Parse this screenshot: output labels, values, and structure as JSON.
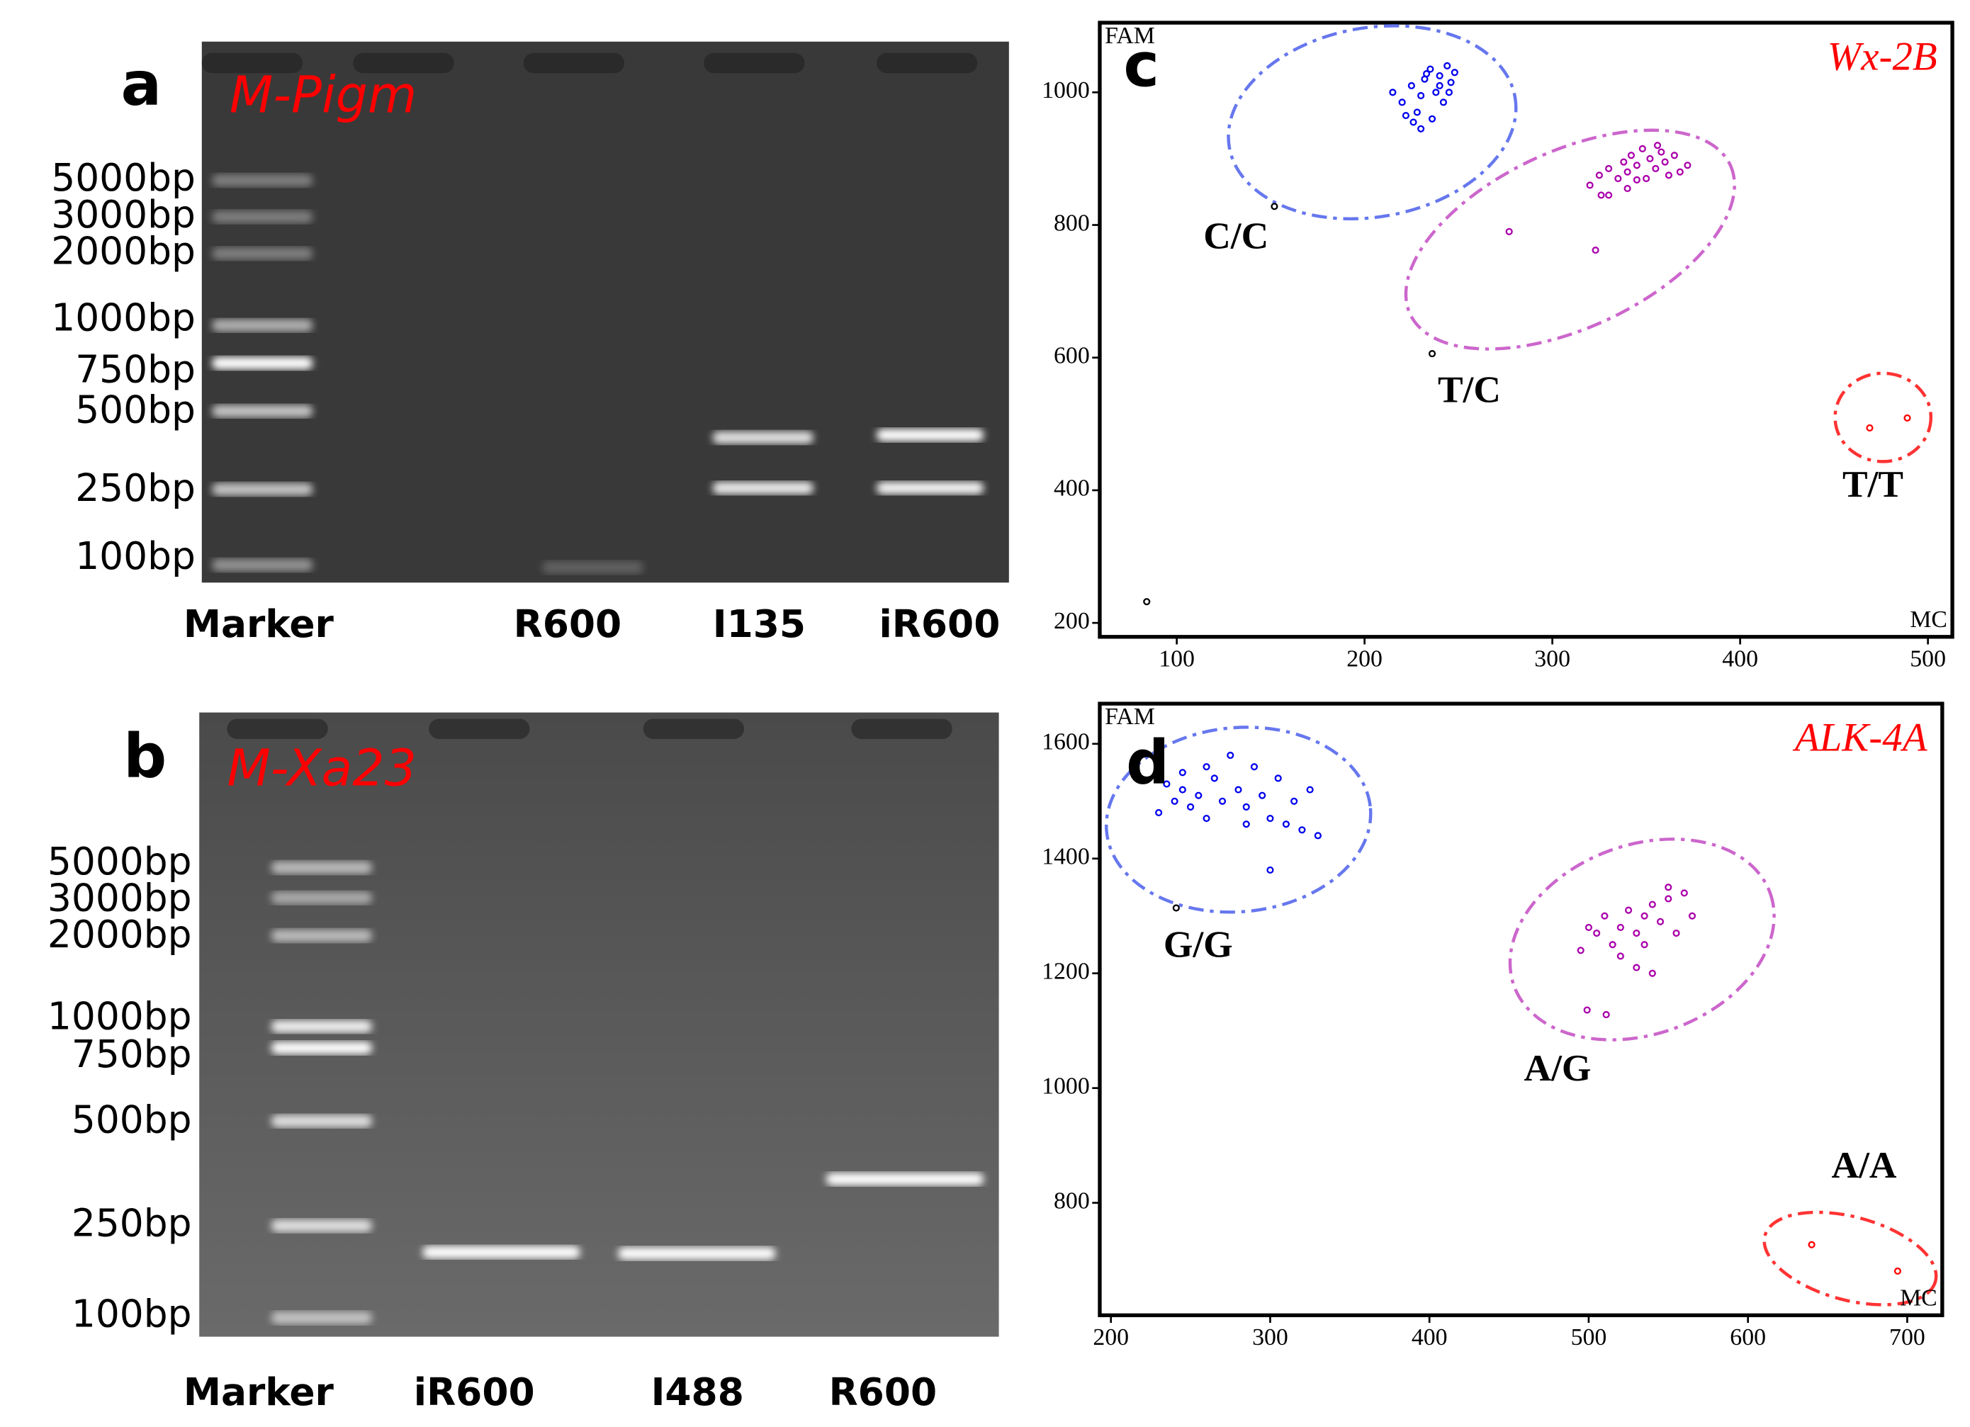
{
  "gels": [
    {
      "letter": "a",
      "gene": "M-Pigm",
      "ladder": [
        "5000bp",
        "3000bp",
        "2000bp",
        "1000bp",
        "750bp",
        "500bp",
        "250bp",
        "100bp"
      ],
      "lanes": [
        "Marker",
        "R600",
        "I135",
        "iR600"
      ]
    },
    {
      "letter": "b",
      "gene": "M-Xa23",
      "ladder": [
        "5000bp",
        "3000bp",
        "2000bp",
        "1000bp",
        "750bp",
        "500bp",
        "250bp",
        "100bp"
      ],
      "lanes": [
        "Marker",
        "iR600",
        "I488",
        "R600"
      ]
    }
  ],
  "chart_data": [
    {
      "type": "scatter",
      "panel": "c",
      "title": "Wx-2B",
      "y_label": "FAM",
      "x_label": "MC",
      "xlim": [
        59,
        513
      ],
      "ylim": [
        179,
        1105
      ],
      "xticks": [
        100,
        200,
        300,
        400,
        500
      ],
      "yticks": [
        200,
        400,
        600,
        800,
        1000
      ],
      "series": [
        {
          "name": "C/C",
          "color": "#0000ee",
          "x": [
            215,
            220,
            225,
            228,
            230,
            232,
            235,
            238,
            240,
            242,
            244,
            246,
            248,
            236,
            226,
            240,
            245,
            233,
            222,
            230
          ],
          "values": [
            1000,
            985,
            1010,
            970,
            995,
            1020,
            1035,
            1000,
            1025,
            985,
            1040,
            1015,
            1030,
            960,
            955,
            1010,
            1000,
            1028,
            965,
            945
          ]
        },
        {
          "name": "T/C",
          "color": "#aa00aa",
          "x": [
            320,
            325,
            330,
            335,
            338,
            340,
            342,
            345,
            348,
            350,
            352,
            355,
            358,
            360,
            362,
            365,
            368,
            372,
            340,
            330,
            345,
            356,
            326,
            277,
            323
          ],
          "values": [
            860,
            875,
            885,
            870,
            895,
            880,
            905,
            890,
            915,
            870,
            900,
            885,
            910,
            895,
            875,
            905,
            880,
            890,
            855,
            845,
            868,
            920,
            845,
            790,
            762
          ]
        },
        {
          "name": "T/T",
          "color": "#ff0000",
          "x": [
            469,
            489
          ],
          "values": [
            494,
            509
          ]
        },
        {
          "color": "#000000",
          "x": [
            152,
            236,
            84
          ],
          "values": [
            828,
            606,
            232
          ]
        }
      ]
    },
    {
      "type": "scatter",
      "panel": "d",
      "title": "ALK-4A",
      "y_label": "FAM",
      "x_label": "MC",
      "xlim": [
        193,
        722
      ],
      "ylim": [
        604,
        1670
      ],
      "xticks": [
        200,
        300,
        400,
        500,
        600,
        700
      ],
      "yticks": [
        800,
        1000,
        1200,
        1400,
        1600
      ],
      "series": [
        {
          "name": "G/G",
          "color": "#0000ee",
          "x": [
            230,
            235,
            240,
            245,
            250,
            255,
            260,
            265,
            270,
            275,
            280,
            285,
            290,
            295,
            300,
            305,
            310,
            315,
            320,
            325,
            330,
            300,
            285,
            260,
            245
          ],
          "values": [
            1480,
            1530,
            1500,
            1520,
            1490,
            1510,
            1470,
            1540,
            1500,
            1580,
            1520,
            1490,
            1560,
            1510,
            1470,
            1540,
            1460,
            1500,
            1450,
            1520,
            1440,
            1380,
            1460,
            1560,
            1550
          ]
        },
        {
          "name": "A/G",
          "color": "#aa00aa",
          "x": [
            495,
            500,
            505,
            510,
            515,
            520,
            525,
            530,
            535,
            540,
            545,
            550,
            555,
            560,
            565,
            530,
            540,
            520,
            550,
            535,
            499,
            511
          ],
          "values": [
            1240,
            1280,
            1270,
            1300,
            1250,
            1280,
            1310,
            1270,
            1300,
            1320,
            1290,
            1330,
            1270,
            1340,
            1300,
            1210,
            1200,
            1230,
            1350,
            1250,
            1136,
            1128
          ]
        },
        {
          "name": "A/A",
          "color": "#ff0000",
          "x": [
            640,
            694
          ],
          "values": [
            727,
            681
          ]
        },
        {
          "color": "#000000",
          "x": [
            241
          ],
          "values": [
            1314
          ]
        }
      ]
    }
  ]
}
